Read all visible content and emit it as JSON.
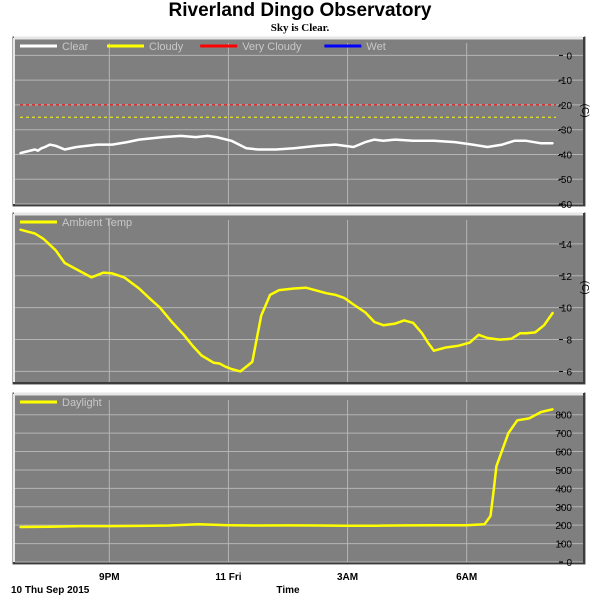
{
  "title": "Riverland Dingo Observatory",
  "subtitle": "Sky is Clear.",
  "footer": {
    "date_label": "10 Thu Sep 2015",
    "time_label": "Time"
  },
  "colors": {
    "panel_bg": "#7f7f7f",
    "grid": "#b4b4b4",
    "outer": "#ffffff"
  },
  "chart_data": [
    {
      "type": "line",
      "panel": "sky",
      "unit": "(C)",
      "ylim": [
        -60,
        5
      ],
      "yticks": [
        0,
        -10,
        -20,
        -30,
        -40,
        -50,
        -60
      ],
      "grid": true,
      "legend": "top-left",
      "legend_entries": [
        {
          "name": "Clear",
          "color": "#ffffff"
        },
        {
          "name": "Cloudy",
          "color": "#ffff00"
        },
        {
          "name": "Very Cloudy",
          "color": "#ff0000"
        },
        {
          "name": "Wet",
          "color": "#0000ff"
        }
      ],
      "thresholds": [
        {
          "y": -20,
          "color": "#ff0000"
        },
        {
          "y": -25,
          "color": "#ffff00"
        }
      ],
      "series": [
        {
          "name": "Clear",
          "color": "#ffffff",
          "x": [
            0,
            0.08,
            0.25,
            0.3,
            0.36,
            0.42,
            0.5,
            0.6,
            0.75,
            0.95,
            1.3,
            1.55,
            1.8,
            2.0,
            2.2,
            2.4,
            2.7,
            2.95,
            3.15,
            3.3,
            3.55,
            3.8,
            4.0,
            4.3,
            4.6,
            4.8,
            5.0,
            5.3,
            5.6,
            5.8,
            5.95,
            6.1,
            6.3,
            6.6,
            6.95,
            7.3,
            7.6,
            7.85,
            8.1,
            8.3,
            8.5,
            8.75,
            8.95
          ],
          "y": [
            -39.5,
            -39,
            -38,
            -38.5,
            -37.5,
            -37,
            -36,
            -36.5,
            -38,
            -37,
            -36,
            -36,
            -35,
            -34,
            -33.5,
            -33,
            -32.5,
            -33,
            -32.5,
            -33,
            -34.5,
            -37.5,
            -38,
            -38,
            -37.5,
            -37,
            -36.5,
            -36,
            -37,
            -35,
            -34,
            -34.5,
            -34,
            -34.5,
            -34.5,
            -35,
            -36,
            -37,
            -36,
            -34.5,
            -34.5,
            -35.5,
            -35.5
          ]
        }
      ]
    },
    {
      "type": "line",
      "panel": "ambient",
      "unit": "(C)",
      "ylim": [
        5.4,
        15.5
      ],
      "yticks": [
        14,
        12,
        10,
        8,
        6
      ],
      "grid": true,
      "legend": "top-left",
      "legend_entries": [
        {
          "name": "Ambient Temp",
          "color": "#ffff00"
        }
      ],
      "series": [
        {
          "name": "Ambient Temp",
          "color": "#ffff00",
          "x": [
            0,
            0.1,
            0.25,
            0.4,
            0.6,
            0.75,
            0.95,
            1.2,
            1.4,
            1.55,
            1.75,
            2.0,
            2.2,
            2.35,
            2.55,
            2.75,
            2.9,
            3.05,
            3.25,
            3.35,
            3.45,
            3.55,
            3.7,
            3.9,
            4.05,
            4.2,
            4.35,
            4.6,
            4.8,
            4.95,
            5.15,
            5.3,
            5.45,
            5.6,
            5.8,
            5.95,
            6.1,
            6.3,
            6.45,
            6.6,
            6.75,
            6.85,
            6.95,
            7.15,
            7.35,
            7.55,
            7.7,
            7.85,
            8.05,
            8.25,
            8.4,
            8.5,
            8.65,
            8.8,
            8.95
          ],
          "y": [
            14.9,
            14.8,
            14.65,
            14.3,
            13.6,
            12.8,
            12.4,
            11.9,
            12.2,
            12.15,
            11.9,
            11.2,
            10.5,
            10.0,
            9.1,
            8.3,
            7.6,
            7.0,
            6.55,
            6.5,
            6.3,
            6.15,
            6.0,
            6.6,
            9.5,
            10.8,
            11.1,
            11.2,
            11.25,
            11.1,
            10.9,
            10.8,
            10.6,
            10.2,
            9.7,
            9.1,
            8.9,
            9.0,
            9.2,
            9.05,
            8.4,
            7.8,
            7.3,
            7.5,
            7.6,
            7.8,
            8.3,
            8.1,
            8.0,
            8.05,
            8.4,
            8.4,
            8.45,
            8.9,
            9.7
          ]
        }
      ]
    },
    {
      "type": "line",
      "panel": "daylight",
      "unit": "",
      "ylim": [
        0,
        880
      ],
      "yticks": [
        800,
        700,
        600,
        500,
        400,
        300,
        200,
        100,
        0
      ],
      "grid": true,
      "legend": "top-left",
      "legend_entries": [
        {
          "name": "Daylight",
          "color": "#ffff00"
        }
      ],
      "series": [
        {
          "name": "Daylight",
          "color": "#ffff00",
          "x": [
            0,
            0.5,
            1.0,
            1.5,
            2.0,
            2.5,
            3.0,
            3.5,
            4.0,
            4.5,
            5.0,
            5.5,
            6.0,
            6.5,
            7.0,
            7.5,
            7.8,
            7.9,
            7.95,
            8.0,
            8.1,
            8.2,
            8.35,
            8.55,
            8.75,
            8.95
          ],
          "y": [
            190,
            192,
            195,
            195,
            196,
            198,
            205,
            200,
            198,
            199,
            198,
            197,
            197,
            199,
            200,
            200,
            205,
            250,
            380,
            520,
            610,
            700,
            770,
            780,
            815,
            830
          ]
        }
      ]
    }
  ],
  "x_axis": {
    "start_label": "10 Thu Sep 2015",
    "ticks": [
      {
        "x": 1.5,
        "label": "9PM"
      },
      {
        "x": 3.5,
        "label": "11 Fri"
      },
      {
        "x": 5.5,
        "label": "3AM"
      },
      {
        "x": 7.5,
        "label": "6AM"
      }
    ],
    "title": "Time"
  }
}
